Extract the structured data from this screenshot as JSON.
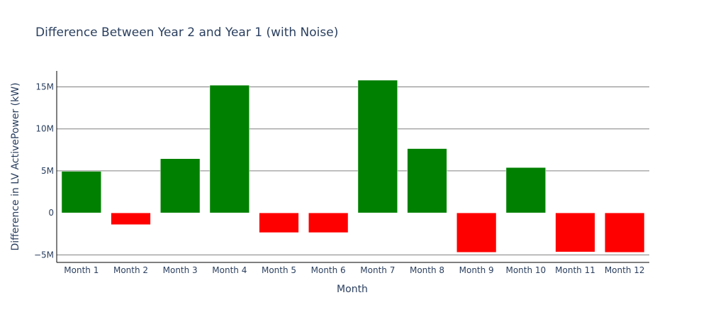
{
  "chart_data": {
    "type": "bar",
    "title": "Difference Between Year 2 and Year 1 (with Noise)",
    "xlabel": "Month",
    "ylabel": "Difference in LV ActivePower (kW)",
    "categories": [
      "Month 1",
      "Month 2",
      "Month 3",
      "Month 4",
      "Month 5",
      "Month 6",
      "Month 7",
      "Month 8",
      "Month 9",
      "Month 10",
      "Month 11",
      "Month 12"
    ],
    "values": [
      4950000,
      -1400000,
      6450000,
      15200000,
      -2350000,
      -2350000,
      15800000,
      7650000,
      -4700000,
      5400000,
      -4650000,
      -4700000
    ],
    "ylim": [
      -5900000,
      16900000
    ],
    "yticks": [
      {
        "value": -5000000,
        "label": "−5M"
      },
      {
        "value": 0,
        "label": "0"
      },
      {
        "value": 5000000,
        "label": "5M"
      },
      {
        "value": 10000000,
        "label": "10M"
      },
      {
        "value": 15000000,
        "label": "15M"
      }
    ],
    "grid": true,
    "legend": "none",
    "colors": {
      "positive": "#008000",
      "negative": "#ff0000",
      "grid": "#808080",
      "axis": "#000000",
      "text": "#2a3f5f"
    }
  }
}
